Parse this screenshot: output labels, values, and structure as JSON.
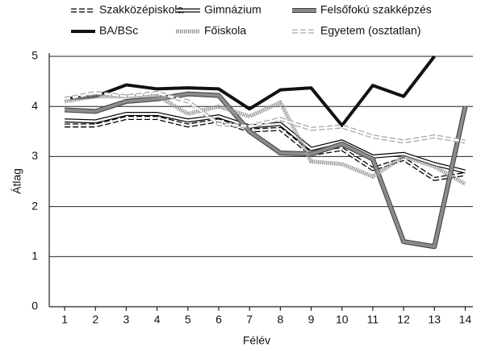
{
  "chart_data": {
    "type": "line",
    "x": [
      1,
      2,
      3,
      4,
      5,
      6,
      7,
      8,
      9,
      10,
      11,
      12,
      13,
      14
    ],
    "xlim": [
      0.5,
      14.25
    ],
    "xticks": [
      1,
      2,
      3,
      4,
      5,
      6,
      7,
      8,
      9,
      10,
      11,
      12,
      13,
      14
    ],
    "ylim": [
      0,
      5
    ],
    "yticks": [
      0,
      1,
      2,
      3,
      4,
      5
    ],
    "grid": true,
    "x_label": "Félév",
    "y_label": "Átlag",
    "series": [
      {
        "name": "Szakközépiskola",
        "color": "#000000",
        "style": "double-dashed",
        "values": [
          3.62,
          3.62,
          3.77,
          3.77,
          3.62,
          3.72,
          3.52,
          3.55,
          3.05,
          3.15,
          2.75,
          2.95,
          2.55,
          2.65
        ]
      },
      {
        "name": "Gimnázium",
        "color": "#000000",
        "style": "double",
        "values": [
          3.72,
          3.7,
          3.85,
          3.85,
          3.72,
          3.8,
          3.6,
          3.65,
          3.15,
          3.3,
          3.0,
          3.05,
          2.85,
          2.7
        ]
      },
      {
        "name": "Felsőfokú szakképzés",
        "color": "#8c8c8c",
        "style": "outlined",
        "values": [
          3.93,
          3.9,
          4.1,
          4.15,
          4.25,
          4.22,
          3.5,
          3.07,
          3.05,
          3.25,
          2.95,
          1.3,
          1.2,
          4.0
        ]
      },
      {
        "name": "BA/BSc",
        "color": "#111111",
        "style": "solid",
        "values": [
          4.15,
          4.2,
          4.43,
          4.35,
          4.37,
          4.35,
          3.95,
          4.33,
          4.37,
          3.62,
          4.42,
          4.2,
          5.0,
          null
        ]
      },
      {
        "name": "Főiskola",
        "color": "#9a9a9a",
        "style": "dotted",
        "values": [
          4.1,
          4.2,
          4.2,
          4.22,
          3.85,
          4.0,
          3.8,
          4.08,
          2.9,
          2.85,
          2.6,
          3.0,
          2.8,
          2.45
        ]
      },
      {
        "name": "Egyetem (osztatlan)",
        "color": "#a8a8a8",
        "style": "double-dashed",
        "values": [
          4.15,
          4.27,
          4.2,
          4.27,
          4.1,
          3.65,
          3.6,
          3.75,
          3.55,
          3.6,
          3.4,
          3.3,
          3.4,
          3.3
        ]
      }
    ]
  }
}
